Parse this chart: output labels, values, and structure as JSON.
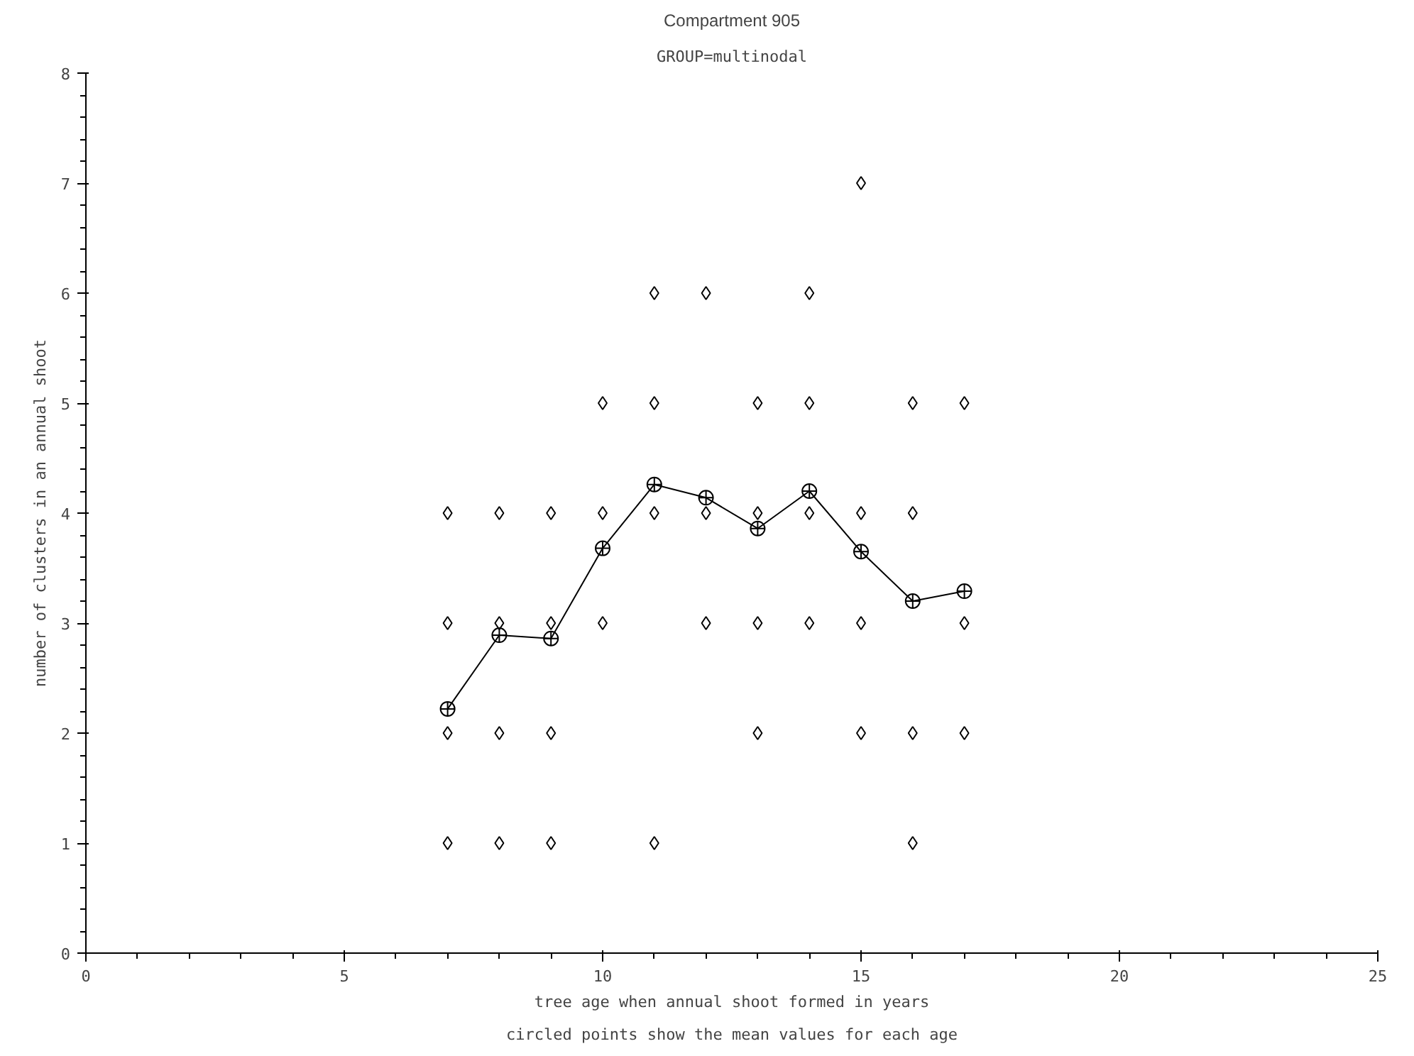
{
  "chart_data": {
    "type": "scatter",
    "title": "Compartment 905",
    "subtitle": "GROUP=multinodal",
    "xlabel": "tree age when annual shoot formed in years",
    "ylabel": "number of clusters in an annual shoot",
    "annotations": [
      "circled points show the mean values for each age"
    ],
    "xlim": [
      0,
      25
    ],
    "xticks": [
      0,
      5,
      10,
      15,
      20,
      25
    ],
    "ylim": [
      0,
      8
    ],
    "yticks": [
      0,
      1,
      2,
      3,
      4,
      5,
      6,
      7,
      8
    ],
    "grid": false,
    "series": [
      {
        "marker": "diamond",
        "color": "#000000",
        "x": [
          7,
          7,
          7,
          7,
          8,
          8,
          8,
          8,
          9,
          9,
          9,
          9,
          10,
          10,
          10,
          11,
          11,
          11,
          11,
          12,
          12,
          12,
          13,
          13,
          13,
          13,
          14,
          14,
          14,
          14,
          15,
          15,
          15,
          15,
          16,
          16,
          16,
          16,
          17,
          17,
          17
        ],
        "values": [
          1,
          2,
          3,
          4,
          1,
          2,
          3,
          4,
          1,
          2,
          3,
          4,
          3,
          4,
          5,
          1,
          4,
          5,
          6,
          3,
          4,
          6,
          2,
          3,
          4,
          5,
          3,
          4,
          5,
          6,
          2,
          3,
          4,
          7,
          1,
          2,
          4,
          5,
          2,
          3,
          5
        ]
      },
      {
        "type": "line",
        "marker": "circle",
        "color": "#000000",
        "x": [
          7,
          8,
          9,
          10,
          11,
          12,
          13,
          14,
          15,
          16,
          17
        ],
        "values": [
          2.22,
          2.89,
          2.86,
          3.68,
          4.26,
          4.14,
          3.86,
          4.2,
          3.65,
          3.2,
          3.29
        ]
      }
    ]
  }
}
